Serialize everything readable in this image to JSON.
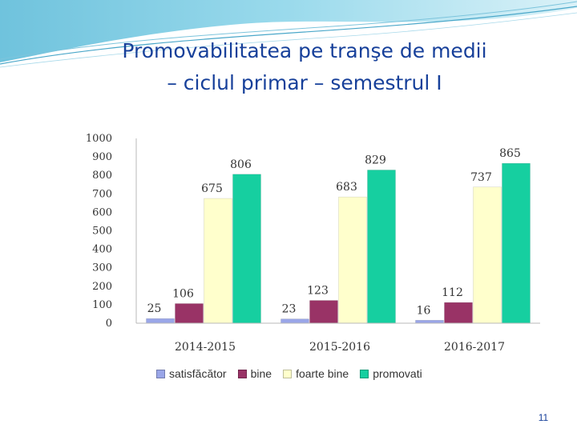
{
  "slide": {
    "title_line1": "Promovabilitatea pe tranşe de medii",
    "title_line2": "– ciclul primar – semestrul I",
    "page_number": "11"
  },
  "colors": {
    "satisfacator": "#9aa6e8",
    "bine": "#993366",
    "foarte_bine": "#ffffcc",
    "promovati": "#16cfa0",
    "title": "#17409a"
  },
  "chart_data": {
    "type": "bar",
    "title": "",
    "xlabel": "",
    "ylabel": "",
    "ylim": [
      0,
      1000
    ],
    "y_ticks": [
      0,
      100,
      200,
      300,
      400,
      500,
      600,
      700,
      800,
      900,
      1000
    ],
    "categories": [
      "2014-2015",
      "2015-2016",
      "2016-2017"
    ],
    "series": [
      {
        "name": "satisfăcător",
        "key": "satisfacator",
        "values": [
          25,
          23,
          16
        ]
      },
      {
        "name": "bine",
        "key": "bine",
        "values": [
          106,
          123,
          112
        ]
      },
      {
        "name": "foarte bine",
        "key": "foarte_bine",
        "values": [
          675,
          683,
          737
        ]
      },
      {
        "name": "promovati",
        "key": "promovati",
        "values": [
          806,
          829,
          865
        ]
      }
    ],
    "legend_position": "bottom"
  }
}
